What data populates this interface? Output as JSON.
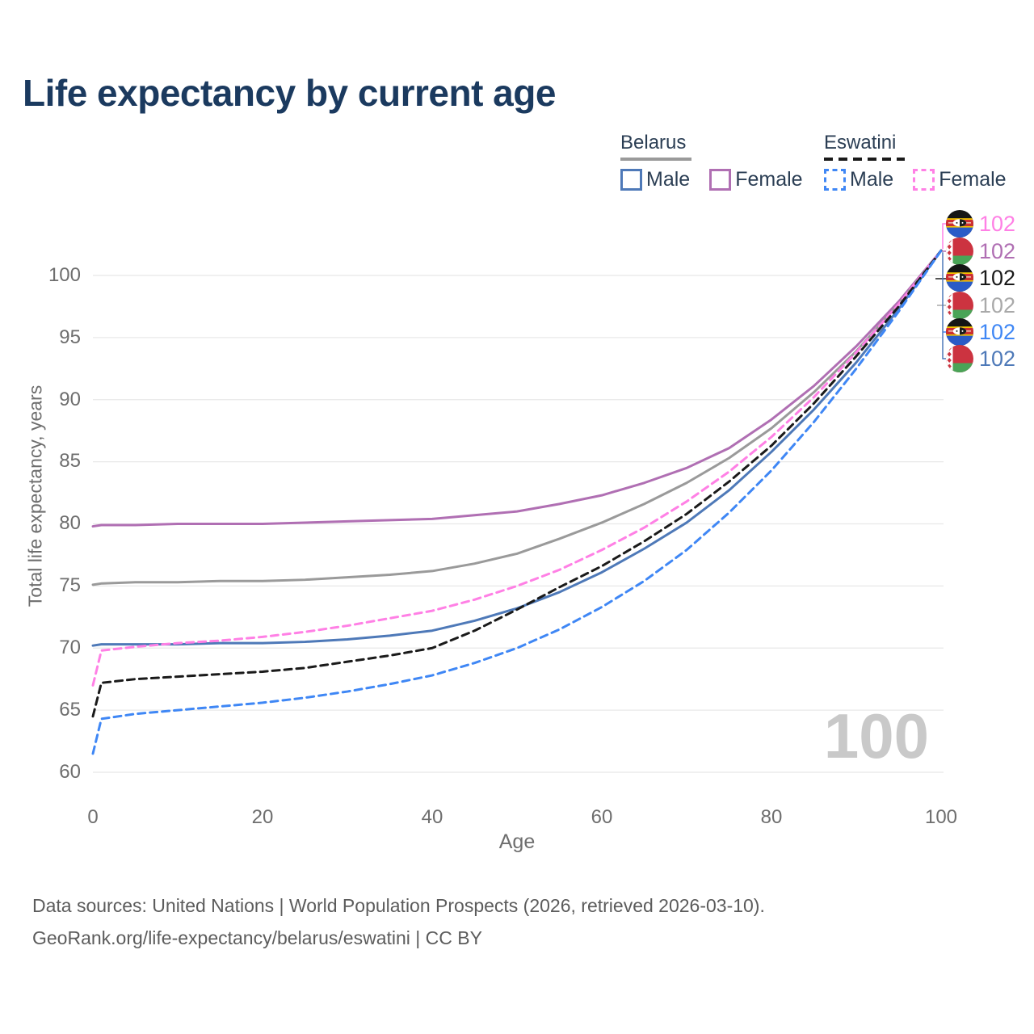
{
  "title": "Life expectancy by current age",
  "legend": {
    "groups": [
      {
        "label": "Belarus",
        "line_style": "solid",
        "line_color": "#9a9a9a",
        "items": [
          {
            "label": "Male",
            "color": "#4e79b8",
            "dashed": false
          },
          {
            "label": "Female",
            "color": "#b06fb3",
            "dashed": false
          }
        ]
      },
      {
        "label": "Eswatini",
        "line_style": "dashed",
        "line_color": "#1a1a1a",
        "items": [
          {
            "label": "Male",
            "color": "#3f87f5",
            "dashed": true
          },
          {
            "label": "Female",
            "color": "#ff80e5",
            "dashed": true
          }
        ]
      }
    ]
  },
  "chart_data": {
    "type": "line",
    "title": "Life expectancy by current age",
    "xlabel": "Age",
    "ylabel": "Total life expectancy, years",
    "xlim": [
      0,
      100
    ],
    "ylim": [
      60,
      102.5
    ],
    "grid": "horizontal",
    "grid_color": "#e8e8e8",
    "x_ticks": [
      "0",
      "20",
      "40",
      "60",
      "80",
      "100"
    ],
    "y_ticks": [
      "100",
      "95",
      "90",
      "85",
      "80",
      "75",
      "70",
      "65",
      "60"
    ],
    "x": [
      0,
      1,
      5,
      10,
      15,
      20,
      25,
      30,
      35,
      40,
      45,
      50,
      55,
      60,
      65,
      70,
      75,
      80,
      85,
      90,
      95,
      100
    ],
    "series": [
      {
        "name": "Belarus Female",
        "country": "Belarus",
        "sex": "Female",
        "color": "#b06fb3",
        "dash": false,
        "values": [
          79.8,
          79.9,
          79.9,
          80.0,
          80.0,
          80.0,
          80.1,
          80.2,
          80.3,
          80.4,
          80.7,
          81.0,
          81.6,
          82.3,
          83.3,
          84.5,
          86.1,
          88.4,
          91.1,
          94.3,
          97.9,
          102.0
        ]
      },
      {
        "name": "Belarus Both sexes",
        "country": "Belarus",
        "sex": "Both",
        "color": "#9a9a9a",
        "dash": false,
        "values": [
          75.1,
          75.2,
          75.3,
          75.3,
          75.4,
          75.4,
          75.5,
          75.7,
          75.9,
          76.2,
          76.8,
          77.6,
          78.8,
          80.1,
          81.6,
          83.3,
          85.3,
          87.7,
          90.6,
          93.9,
          97.7,
          102.0
        ]
      },
      {
        "name": "Belarus Male",
        "country": "Belarus",
        "sex": "Male",
        "color": "#4e79b8",
        "dash": false,
        "values": [
          70.2,
          70.3,
          70.3,
          70.3,
          70.4,
          70.4,
          70.5,
          70.7,
          71.0,
          71.4,
          72.2,
          73.2,
          74.5,
          76.1,
          78.0,
          80.1,
          82.7,
          85.8,
          89.2,
          93.0,
          97.3,
          102.0
        ]
      },
      {
        "name": "Eswatini Female",
        "country": "Eswatini",
        "sex": "Female",
        "color": "#ff80e5",
        "dash": true,
        "values": [
          67.0,
          69.8,
          70.1,
          70.4,
          70.6,
          70.9,
          71.3,
          71.8,
          72.4,
          73.0,
          73.9,
          75.0,
          76.3,
          77.9,
          79.7,
          81.8,
          84.2,
          87.0,
          90.2,
          93.8,
          97.7,
          102.0
        ]
      },
      {
        "name": "Eswatini Both sexes",
        "country": "Eswatini",
        "sex": "Both",
        "color": "#1a1a1a",
        "dash": true,
        "values": [
          64.5,
          67.2,
          67.5,
          67.7,
          67.9,
          68.1,
          68.4,
          68.9,
          69.4,
          70.0,
          71.4,
          73.1,
          74.9,
          76.6,
          78.6,
          80.8,
          83.4,
          86.3,
          89.7,
          93.5,
          97.5,
          102.0
        ]
      },
      {
        "name": "Eswatini Male",
        "country": "Eswatini",
        "sex": "Male",
        "color": "#3f87f5",
        "dash": true,
        "values": [
          61.5,
          64.3,
          64.7,
          65.0,
          65.3,
          65.6,
          66.0,
          66.5,
          67.1,
          67.8,
          68.8,
          70.0,
          71.5,
          73.3,
          75.4,
          77.9,
          80.9,
          84.3,
          88.2,
          92.5,
          97.1,
          102.0
        ]
      }
    ],
    "end_labels": [
      {
        "flag": "eswatini-flag",
        "value": "102",
        "color": "#ff80e5"
      },
      {
        "flag": "belarus-flag",
        "value": "102",
        "color": "#b06fb3"
      },
      {
        "flag": "eswatini-flag",
        "value": "102",
        "color": "#1a1a1a"
      },
      {
        "flag": "belarus-flag",
        "value": "102",
        "color": "#a9a9a9"
      },
      {
        "flag": "eswatini-flag",
        "value": "102",
        "color": "#3f87f5"
      },
      {
        "flag": "belarus-flag",
        "value": "102",
        "color": "#4e79b8"
      }
    ],
    "watermark": "100",
    "legend_position": "top-right"
  },
  "footer": {
    "line1": "Data sources: United Nations | World Population Prospects (2026, retrieved 2026-03-10).",
    "line2": "GeoRank.org/life-expectancy/belarus/eswatini | CC BY"
  }
}
